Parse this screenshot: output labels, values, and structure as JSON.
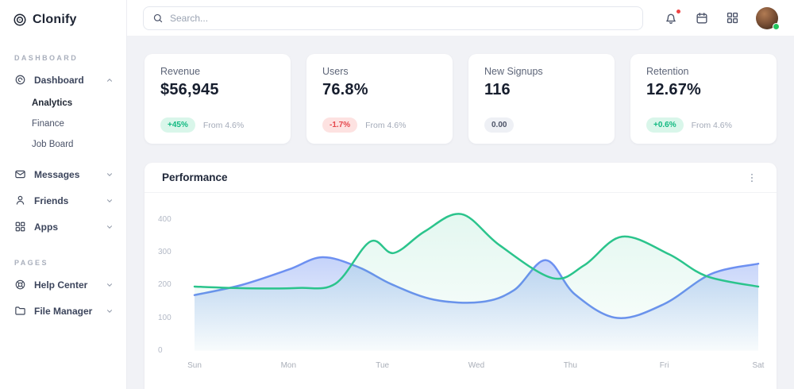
{
  "brand": {
    "name": "Clonify"
  },
  "topbar": {
    "search_placeholder": "Search..."
  },
  "sidebar": {
    "sections": {
      "dashboard": "DASHBOARD",
      "pages": "PAGES"
    },
    "items": {
      "dashboard": "Dashboard",
      "analytics": "Analytics",
      "finance": "Finance",
      "job_board": "Job Board",
      "messages": "Messages",
      "friends": "Friends",
      "apps": "Apps",
      "help_center": "Help Center",
      "file_manager": "File Manager"
    }
  },
  "cards": [
    {
      "title": "Revenue",
      "value": "$56,945",
      "badge": "+45%",
      "badge_type": "positive",
      "note": "From 4.6%"
    },
    {
      "title": "Users",
      "value": "76.8%",
      "badge": "-1.7%",
      "badge_type": "negative",
      "note": "From 4.6%"
    },
    {
      "title": "New Signups",
      "value": "116",
      "badge": "0.00",
      "badge_type": "neutral",
      "note": ""
    },
    {
      "title": "Retention",
      "value": "12.67%",
      "badge": "+0.6%",
      "badge_type": "positive",
      "note": "From 4.6%"
    }
  ],
  "performance": {
    "title": "Performance"
  },
  "colors": {
    "series_green": "#2bc48c",
    "series_blue": "#6d90f1",
    "positive_text": "#11b981",
    "positive_bg": "#d9f6ea",
    "negative_text": "#e5484d",
    "negative_bg": "#fde2e1",
    "neutral_text": "#4d5468",
    "neutral_bg": "#eef0f5",
    "notification_dot": "#ef4444",
    "online_dot": "#22c55e"
  },
  "chart_data": {
    "type": "area",
    "title": "Performance",
    "x_labels": [
      "Sun",
      "Mon",
      "Tue",
      "Wed",
      "Thu",
      "Fri",
      "Sat"
    ],
    "y_ticks": [
      0,
      100,
      200,
      300,
      400
    ],
    "ylim": [
      0,
      440
    ],
    "grid": false,
    "legend": false,
    "series": [
      {
        "name": "series-blue",
        "color": "#6d90f1",
        "points": [
          [
            0,
            170
          ],
          [
            0.5,
            201
          ],
          [
            1,
            248
          ],
          [
            1.36,
            286
          ],
          [
            1.75,
            255
          ],
          [
            2.1,
            203
          ],
          [
            2.55,
            156
          ],
          [
            3.05,
            149
          ],
          [
            3.4,
            185
          ],
          [
            3.74,
            277
          ],
          [
            4.05,
            172
          ],
          [
            4.5,
            100
          ],
          [
            5,
            143
          ],
          [
            5.5,
            235
          ],
          [
            6,
            266
          ]
        ]
      },
      {
        "name": "series-green",
        "color": "#2bc48c",
        "points": [
          [
            0,
            196
          ],
          [
            0.55,
            191
          ],
          [
            1.1,
            192
          ],
          [
            1.5,
            205
          ],
          [
            1.87,
            334
          ],
          [
            2.12,
            299
          ],
          [
            2.45,
            365
          ],
          [
            2.84,
            418
          ],
          [
            3.25,
            322
          ],
          [
            3.81,
            222
          ],
          [
            4.15,
            262
          ],
          [
            4.55,
            349
          ],
          [
            5.05,
            295
          ],
          [
            5.45,
            228
          ],
          [
            6,
            196
          ]
        ]
      }
    ]
  }
}
